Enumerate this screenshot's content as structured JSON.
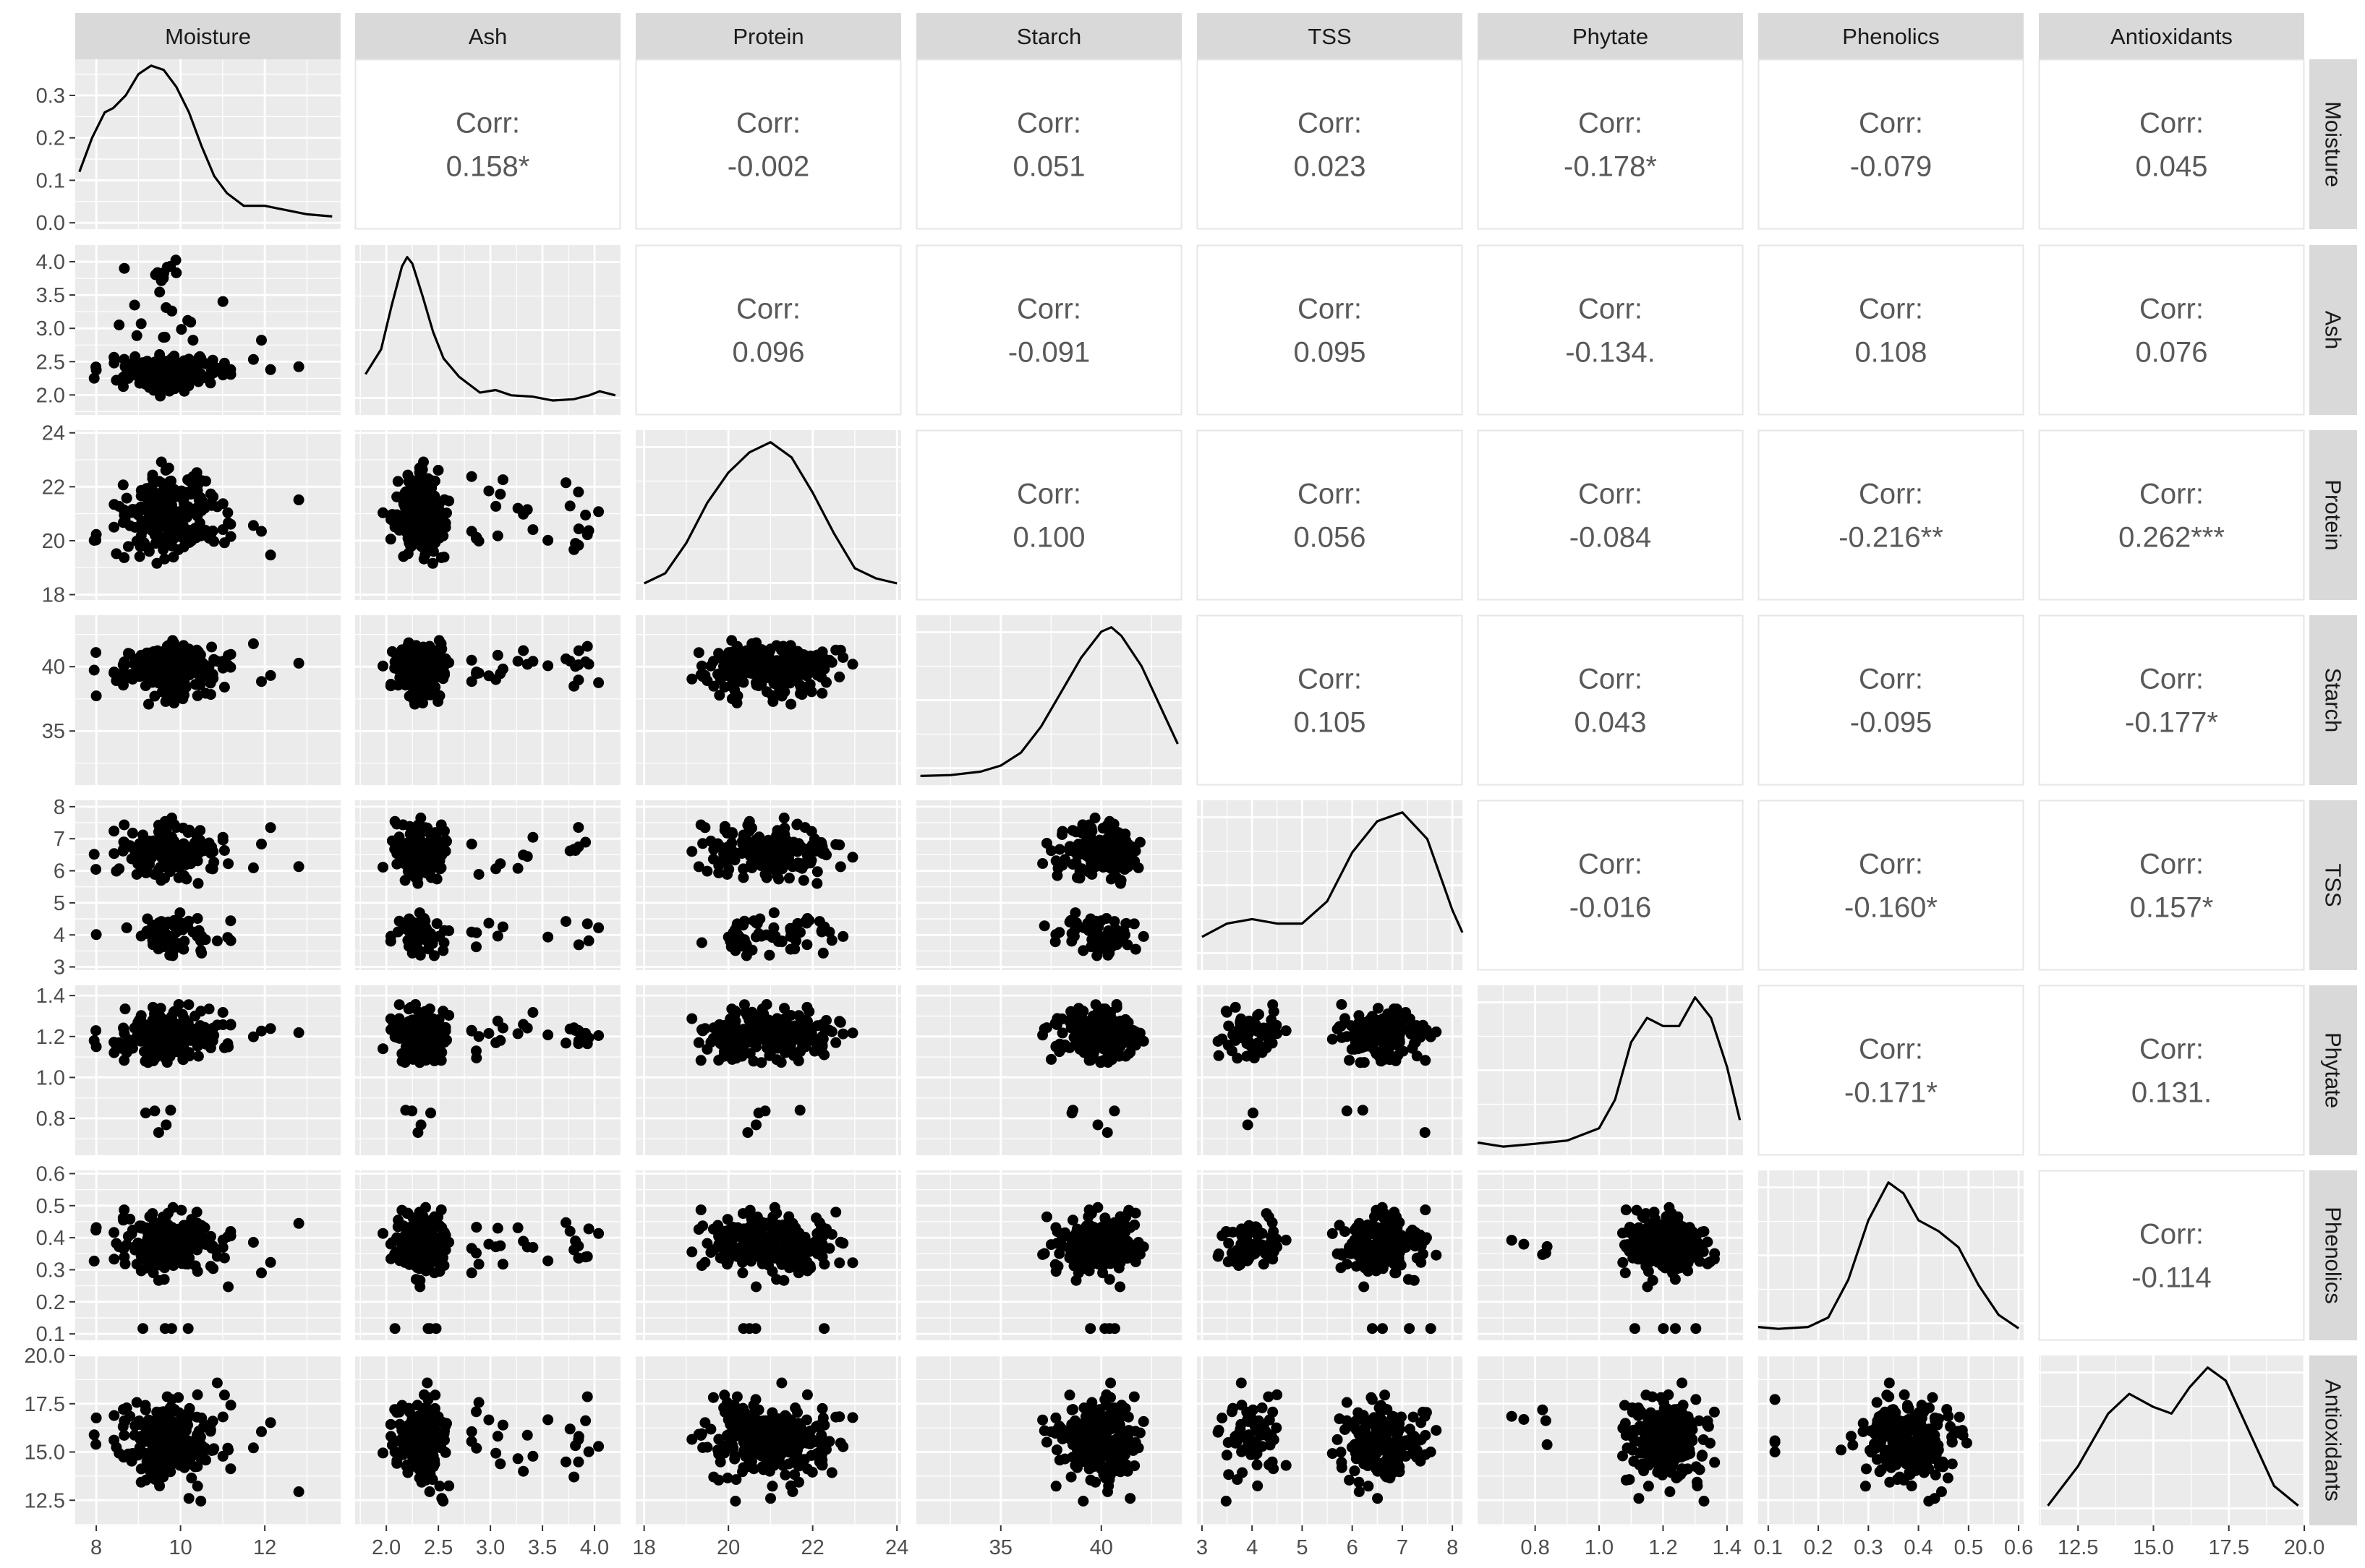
{
  "chart_data": {
    "type": "scatter",
    "title": "",
    "grid": true,
    "corr_label": "Corr:",
    "variables": [
      {
        "name": "Moisture",
        "lim": [
          7.5,
          13.8
        ],
        "breaks": [
          8,
          10,
          12
        ],
        "break_labels": [
          "8",
          "10",
          "12"
        ],
        "diag_lim": [
          -0.015,
          0.385
        ],
        "diag_breaks": [
          0.0,
          0.1,
          0.2,
          0.3
        ],
        "diag_break_labels": [
          "0.0",
          "0.1",
          "0.2",
          "0.3"
        ]
      },
      {
        "name": "Ash",
        "lim": [
          1.7,
          4.25
        ],
        "breaks": [
          2.0,
          2.5,
          3.0,
          3.5,
          4.0
        ],
        "break_labels": [
          "2.0",
          "2.5",
          "3.0",
          "3.5",
          "4.0"
        ]
      },
      {
        "name": "Protein",
        "lim": [
          17.8,
          24.1
        ],
        "breaks": [
          18,
          20,
          22,
          24
        ],
        "break_labels": [
          "18",
          "20",
          "22",
          "24"
        ]
      },
      {
        "name": "Starch",
        "lim": [
          30.8,
          44.0
        ],
        "breaks": [
          35,
          40
        ],
        "break_labels": [
          "35",
          "40"
        ]
      },
      {
        "name": "TSS",
        "lim": [
          2.9,
          8.2
        ],
        "breaks": [
          3,
          4,
          5,
          6,
          7,
          8
        ],
        "break_labels": [
          "3",
          "4",
          "5",
          "6",
          "7",
          "8"
        ]
      },
      {
        "name": "Phytate",
        "lim": [
          0.62,
          1.45
        ],
        "breaks": [
          0.8,
          1.0,
          1.2,
          1.4
        ],
        "break_labels": [
          "0.8",
          "1.0",
          "1.2",
          "1.4"
        ]
      },
      {
        "name": "Phenolics",
        "lim": [
          0.08,
          0.61
        ],
        "breaks": [
          0.1,
          0.2,
          0.3,
          0.4,
          0.5,
          0.6
        ],
        "break_labels": [
          "0.1",
          "0.2",
          "0.3",
          "0.4",
          "0.5",
          "0.6"
        ]
      },
      {
        "name": "Antioxidants",
        "lim": [
          11.2,
          20.0
        ],
        "breaks": [
          12.5,
          15.0,
          17.5,
          20.0
        ],
        "break_labels": [
          "12.5",
          "15.0",
          "17.5",
          "20.0"
        ]
      }
    ],
    "correlations": [
      {
        "row": 0,
        "col": 1,
        "value": "0.158*"
      },
      {
        "row": 0,
        "col": 2,
        "value": "-0.002"
      },
      {
        "row": 0,
        "col": 3,
        "value": "0.051"
      },
      {
        "row": 0,
        "col": 4,
        "value": "0.023"
      },
      {
        "row": 0,
        "col": 5,
        "value": "-0.178*"
      },
      {
        "row": 0,
        "col": 6,
        "value": "-0.079"
      },
      {
        "row": 0,
        "col": 7,
        "value": "0.045"
      },
      {
        "row": 1,
        "col": 2,
        "value": "0.096"
      },
      {
        "row": 1,
        "col": 3,
        "value": "-0.091"
      },
      {
        "row": 1,
        "col": 4,
        "value": "0.095"
      },
      {
        "row": 1,
        "col": 5,
        "value": "-0.134."
      },
      {
        "row": 1,
        "col": 6,
        "value": "0.108"
      },
      {
        "row": 1,
        "col": 7,
        "value": "0.076"
      },
      {
        "row": 2,
        "col": 3,
        "value": "0.100"
      },
      {
        "row": 2,
        "col": 4,
        "value": "0.056"
      },
      {
        "row": 2,
        "col": 5,
        "value": "-0.084"
      },
      {
        "row": 2,
        "col": 6,
        "value": "-0.216**"
      },
      {
        "row": 2,
        "col": 7,
        "value": "0.262***"
      },
      {
        "row": 3,
        "col": 4,
        "value": "0.105"
      },
      {
        "row": 3,
        "col": 5,
        "value": "0.043"
      },
      {
        "row": 3,
        "col": 6,
        "value": "-0.095"
      },
      {
        "row": 3,
        "col": 7,
        "value": "-0.177*"
      },
      {
        "row": 4,
        "col": 5,
        "value": "-0.016"
      },
      {
        "row": 4,
        "col": 6,
        "value": "-0.160*"
      },
      {
        "row": 4,
        "col": 7,
        "value": "0.157*"
      },
      {
        "row": 5,
        "col": 6,
        "value": "-0.171*"
      },
      {
        "row": 5,
        "col": 7,
        "value": "0.131."
      },
      {
        "row": 6,
        "col": 7,
        "value": "-0.114"
      }
    ],
    "densities": [
      {
        "variable": "Moisture",
        "x": [
          7.6,
          7.9,
          8.2,
          8.4,
          8.7,
          9.0,
          9.3,
          9.6,
          9.9,
          10.2,
          10.5,
          10.8,
          11.1,
          11.5,
          12.0,
          12.5,
          13.0,
          13.6
        ],
        "y": [
          0.12,
          0.2,
          0.26,
          0.27,
          0.3,
          0.35,
          0.37,
          0.36,
          0.32,
          0.26,
          0.18,
          0.11,
          0.07,
          0.04,
          0.04,
          0.03,
          0.02,
          0.015
        ]
      },
      {
        "variable": "Ash",
        "x": [
          1.8,
          1.95,
          2.05,
          2.15,
          2.2,
          2.25,
          2.35,
          2.45,
          2.55,
          2.7,
          2.9,
          3.05,
          3.2,
          3.4,
          3.6,
          3.8,
          3.95,
          4.05,
          4.2
        ],
        "y": [
          0.26,
          0.45,
          0.78,
          1.08,
          1.15,
          1.1,
          0.85,
          0.58,
          0.38,
          0.24,
          0.12,
          0.14,
          0.1,
          0.09,
          0.06,
          0.07,
          0.1,
          0.13,
          0.1
        ]
      },
      {
        "variable": "Protein",
        "x": [
          18.0,
          18.5,
          19.0,
          19.5,
          20.0,
          20.5,
          21.0,
          21.5,
          22.0,
          22.5,
          23.0,
          23.5,
          24.0
        ],
        "y": [
          0.02,
          0.04,
          0.1,
          0.18,
          0.24,
          0.28,
          0.3,
          0.27,
          0.2,
          0.12,
          0.05,
          0.03,
          0.02
        ]
      },
      {
        "variable": "Starch",
        "x": [
          31.0,
          32.5,
          34.0,
          35.0,
          36.0,
          37.0,
          38.0,
          39.0,
          40.0,
          40.5,
          41.0,
          42.0,
          43.0,
          43.8
        ],
        "y": [
          0.003,
          0.004,
          0.008,
          0.015,
          0.03,
          0.06,
          0.1,
          0.14,
          0.17,
          0.175,
          0.165,
          0.13,
          0.08,
          0.04
        ]
      },
      {
        "variable": "TSS",
        "x": [
          3.0,
          3.5,
          4.0,
          4.5,
          5.0,
          5.5,
          6.0,
          6.5,
          7.0,
          7.5,
          8.0,
          8.2
        ],
        "y": [
          0.06,
          0.09,
          0.1,
          0.09,
          0.09,
          0.14,
          0.25,
          0.32,
          0.34,
          0.28,
          0.12,
          0.07
        ]
      },
      {
        "variable": "Phytate",
        "x": [
          0.62,
          0.7,
          0.8,
          0.9,
          1.0,
          1.05,
          1.1,
          1.15,
          1.2,
          1.25,
          1.3,
          1.35,
          1.4,
          1.44
        ],
        "y": [
          0.15,
          0.05,
          0.12,
          0.2,
          0.5,
          1.2,
          2.6,
          3.2,
          3.0,
          3.0,
          3.7,
          3.2,
          2.0,
          0.7
        ]
      },
      {
        "variable": "Phenolics",
        "x": [
          0.08,
          0.12,
          0.18,
          0.22,
          0.26,
          0.3,
          0.34,
          0.37,
          0.4,
          0.44,
          0.48,
          0.52,
          0.56,
          0.6
        ],
        "y": [
          0.25,
          0.18,
          0.25,
          0.6,
          2.0,
          4.2,
          5.6,
          5.2,
          4.2,
          3.8,
          3.2,
          1.8,
          0.7,
          0.2
        ]
      },
      {
        "variable": "Antioxidants",
        "x": [
          11.5,
          12.5,
          13.5,
          14.2,
          15.0,
          15.6,
          16.2,
          16.8,
          17.4,
          18.2,
          19.0,
          19.8
        ],
        "y": [
          0.02,
          0.08,
          0.16,
          0.19,
          0.17,
          0.16,
          0.2,
          0.23,
          0.21,
          0.13,
          0.05,
          0.02
        ]
      }
    ]
  }
}
